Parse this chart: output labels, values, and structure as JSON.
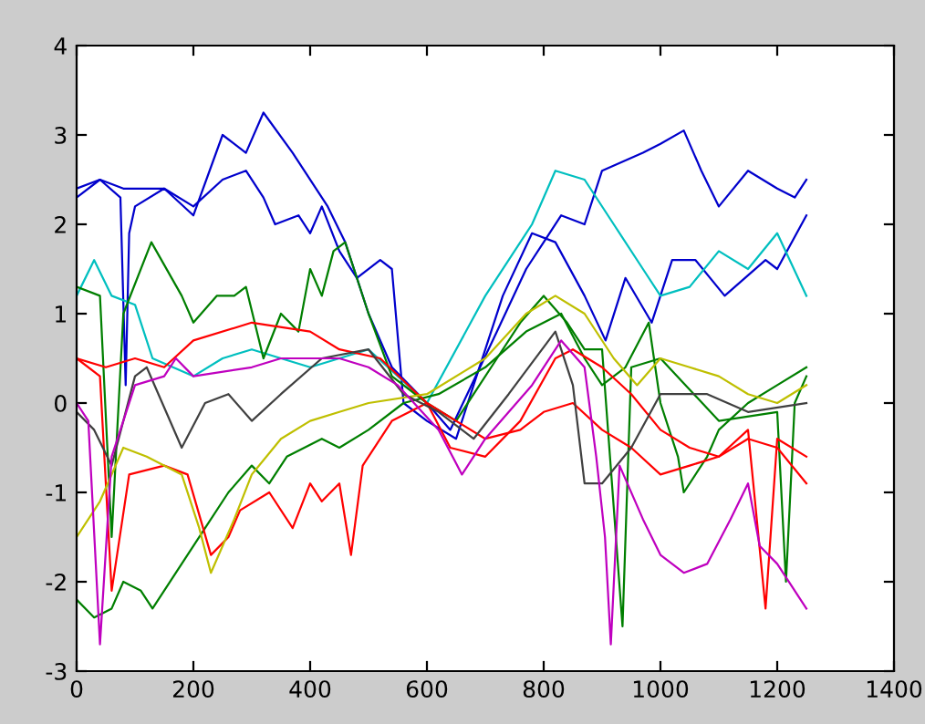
{
  "chart_data": {
    "type": "line",
    "xlim": [
      0,
      1400
    ],
    "ylim": [
      -3,
      4
    ],
    "xticks": [
      0,
      200,
      400,
      600,
      800,
      1000,
      1200,
      1400
    ],
    "yticks": [
      -3,
      -2,
      -1,
      0,
      1,
      2,
      3,
      4
    ],
    "grid": false,
    "marker": "none",
    "line_style": "solid",
    "series": [
      {
        "color": "#0000cc",
        "x": [
          0,
          40,
          80,
          100,
          150,
          200,
          250,
          290,
          320,
          370,
          430,
          460,
          500,
          540,
          600,
          640,
          720,
          770,
          800,
          830,
          870,
          900,
          970,
          1000,
          1040,
          1070,
          1100,
          1150,
          1200,
          1230,
          1250
        ],
        "values": [
          2.3,
          2.5,
          2.4,
          2.4,
          2.4,
          2.1,
          3.0,
          2.8,
          3.25,
          2.8,
          2.2,
          1.8,
          1.0,
          0.4,
          0.0,
          -0.3,
          0.8,
          1.5,
          1.8,
          2.1,
          2.0,
          2.6,
          2.8,
          2.9,
          3.05,
          2.6,
          2.2,
          2.6,
          2.4,
          2.3,
          2.5
        ]
      },
      {
        "color": "#0000cc",
        "x": [
          0,
          40,
          75,
          84,
          90,
          100,
          150,
          200,
          250,
          290,
          320,
          340,
          380,
          400,
          420,
          450,
          480,
          520,
          540,
          560,
          600,
          650,
          730,
          780,
          820,
          870,
          906,
          940,
          985,
          1020,
          1060,
          1110,
          1180,
          1200,
          1250
        ],
        "values": [
          2.4,
          2.5,
          2.3,
          0.2,
          1.9,
          2.2,
          2.4,
          2.2,
          2.5,
          2.6,
          2.3,
          2.0,
          2.1,
          1.9,
          2.2,
          1.7,
          1.4,
          1.6,
          1.5,
          0.0,
          -0.2,
          -0.4,
          1.2,
          1.9,
          1.8,
          1.2,
          0.7,
          1.4,
          0.9,
          1.6,
          1.6,
          1.2,
          1.6,
          1.5,
          2.1
        ]
      },
      {
        "color": "#00bfbf",
        "x": [
          0,
          30,
          60,
          100,
          130,
          200,
          250,
          300,
          400,
          500,
          600,
          700,
          780,
          820,
          870,
          920,
          970,
          1000,
          1050,
          1100,
          1150,
          1200,
          1250
        ],
        "values": [
          1.2,
          1.6,
          1.2,
          1.1,
          0.5,
          0.3,
          0.5,
          0.6,
          0.4,
          0.6,
          0.0,
          1.2,
          2.0,
          2.6,
          2.5,
          2.0,
          1.5,
          1.2,
          1.3,
          1.7,
          1.5,
          1.9,
          1.2
        ]
      },
      {
        "color": "#007f00",
        "x": [
          0,
          40,
          60,
          80,
          128,
          180,
          200,
          240,
          270,
          290,
          320,
          350,
          380,
          400,
          420,
          440,
          460,
          500,
          540,
          600,
          650,
          720,
          760,
          800,
          840,
          870,
          900,
          935,
          950,
          1000,
          1100,
          1200,
          1215,
          1230,
          1250
        ],
        "values": [
          1.3,
          1.2,
          -1.5,
          1.0,
          1.8,
          1.2,
          0.9,
          1.2,
          1.2,
          1.3,
          0.5,
          1.0,
          0.8,
          1.5,
          1.2,
          1.7,
          1.8,
          1.0,
          0.3,
          0.0,
          -0.2,
          0.5,
          0.9,
          1.2,
          0.9,
          0.6,
          0.6,
          -2.5,
          0.4,
          0.5,
          -0.2,
          -0.1,
          -2.0,
          0.0,
          0.3
        ]
      },
      {
        "color": "#007f00",
        "x": [
          0,
          30,
          60,
          80,
          110,
          130,
          170,
          220,
          260,
          300,
          330,
          360,
          420,
          450,
          500,
          560,
          620,
          700,
          770,
          830,
          870,
          900,
          940,
          980,
          1000,
          1030,
          1040,
          1080,
          1100,
          1150,
          1200,
          1250
        ],
        "values": [
          -2.2,
          -2.4,
          -2.3,
          -2.0,
          -2.1,
          -2.3,
          -1.9,
          -1.4,
          -1.0,
          -0.7,
          -0.9,
          -0.6,
          -0.4,
          -0.5,
          -0.3,
          0.0,
          0.1,
          0.4,
          0.8,
          1.0,
          0.5,
          0.2,
          0.4,
          0.9,
          0.0,
          -0.6,
          -1.0,
          -0.6,
          -0.3,
          0.0,
          0.2,
          0.4
        ]
      },
      {
        "color": "#ff0000",
        "x": [
          0,
          40,
          60,
          90,
          150,
          190,
          230,
          260,
          280,
          330,
          370,
          400,
          420,
          450,
          470,
          490,
          540,
          600,
          700,
          760,
          800,
          850,
          900,
          950,
          1000,
          1050,
          1100,
          1150,
          1180,
          1200,
          1250
        ],
        "values": [
          0.5,
          0.3,
          -2.1,
          -0.8,
          -0.7,
          -0.8,
          -1.7,
          -1.5,
          -1.2,
          -1.0,
          -1.4,
          -0.9,
          -1.1,
          -0.9,
          -1.7,
          -0.7,
          -0.2,
          0.0,
          -0.4,
          -0.3,
          -0.1,
          0.0,
          -0.3,
          -0.5,
          -0.8,
          -0.7,
          -0.6,
          -0.3,
          -2.3,
          -0.4,
          -0.6
        ]
      },
      {
        "color": "#ff0000",
        "x": [
          0,
          50,
          100,
          150,
          200,
          300,
          400,
          450,
          520,
          600,
          640,
          700,
          760,
          820,
          850,
          900,
          950,
          1000,
          1050,
          1100,
          1150,
          1200,
          1250
        ],
        "values": [
          0.5,
          0.4,
          0.5,
          0.4,
          0.7,
          0.9,
          0.8,
          0.6,
          0.5,
          0.0,
          -0.5,
          -0.6,
          -0.2,
          0.5,
          0.6,
          0.4,
          0.1,
          -0.3,
          -0.5,
          -0.6,
          -0.4,
          -0.5,
          -0.9
        ]
      },
      {
        "color": "#bfbf00",
        "x": [
          0,
          40,
          80,
          120,
          180,
          210,
          230,
          270,
          300,
          350,
          400,
          450,
          500,
          600,
          700,
          770,
          820,
          870,
          920,
          960,
          1000,
          1050,
          1100,
          1150,
          1200,
          1250
        ],
        "values": [
          -1.5,
          -1.1,
          -0.5,
          -0.6,
          -0.8,
          -1.4,
          -1.9,
          -1.3,
          -0.8,
          -0.4,
          -0.2,
          -0.1,
          0.0,
          0.1,
          0.5,
          1.0,
          1.2,
          1.0,
          0.5,
          0.2,
          0.5,
          0.4,
          0.3,
          0.1,
          0.0,
          0.2
        ]
      },
      {
        "color": "#404040",
        "x": [
          0,
          30,
          60,
          100,
          120,
          180,
          220,
          260,
          300,
          350,
          420,
          500,
          560,
          620,
          680,
          740,
          820,
          850,
          870,
          900,
          950,
          1000,
          1080,
          1150,
          1250
        ],
        "values": [
          -0.1,
          -0.3,
          -0.7,
          0.3,
          0.4,
          -0.5,
          0.0,
          0.1,
          -0.2,
          0.1,
          0.5,
          0.6,
          0.1,
          -0.1,
          -0.4,
          0.1,
          0.8,
          0.2,
          -0.9,
          -0.9,
          -0.5,
          0.1,
          0.1,
          -0.1,
          0.0
        ]
      },
      {
        "color": "#bf00bf",
        "x": [
          0,
          20,
          40,
          60,
          100,
          150,
          170,
          200,
          300,
          350,
          450,
          500,
          550,
          620,
          660,
          700,
          780,
          830,
          870,
          890,
          905,
          915,
          930,
          970,
          1000,
          1040,
          1080,
          1120,
          1150,
          1170,
          1200,
          1250
        ],
        "values": [
          0.0,
          -0.2,
          -2.7,
          -0.6,
          0.2,
          0.3,
          0.5,
          0.3,
          0.4,
          0.5,
          0.5,
          0.4,
          0.2,
          -0.3,
          -0.8,
          -0.4,
          0.2,
          0.7,
          0.4,
          -0.6,
          -1.5,
          -2.7,
          -0.7,
          -1.3,
          -1.7,
          -1.9,
          -1.8,
          -1.3,
          -0.9,
          -1.6,
          -1.8,
          -2.3
        ]
      }
    ]
  }
}
